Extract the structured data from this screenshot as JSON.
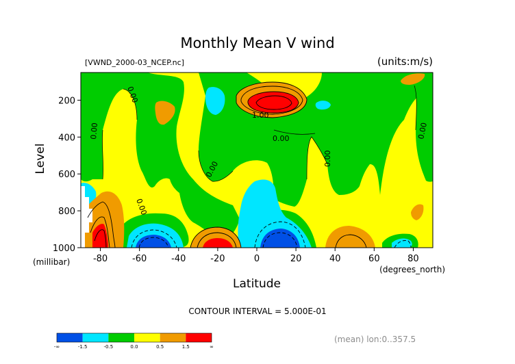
{
  "chart_data": {
    "type": "contour",
    "title": "Monthly Mean V wind",
    "dataset_label": "[VWND_2000-03_NCEP.nc]",
    "units_label": "(units:m/s)",
    "xlabel": "Latitude",
    "x_units": "(degrees_north)",
    "ylabel": "Level",
    "y_units": "(millibar)",
    "x_ticks": [
      -80,
      -60,
      -40,
      -20,
      0,
      20,
      40,
      60,
      80
    ],
    "y_ticks": [
      200,
      400,
      600,
      800,
      1000
    ],
    "xlim": [
      -90,
      90
    ],
    "ylim": [
      1000,
      50
    ],
    "y_inverted": true,
    "contour_interval_text": "CONTOUR INTERVAL = 5.000E-01",
    "footnote": "(mean) lon:0..357.5",
    "contour_labels": [
      "0.00",
      "0.00",
      "0.00",
      "0.00",
      "0.00",
      "0.00",
      "0.00",
      "1.00"
    ],
    "colorbar": {
      "tick_labels": [
        "-∞",
        "-1.5",
        "-0.5",
        "0.0",
        "0.5",
        "1.5",
        "∞"
      ],
      "colors": [
        "#0050e6",
        "#00e6ff",
        "#00cc00",
        "#ffff00",
        "#f09b00",
        "#ff0000"
      ]
    }
  }
}
